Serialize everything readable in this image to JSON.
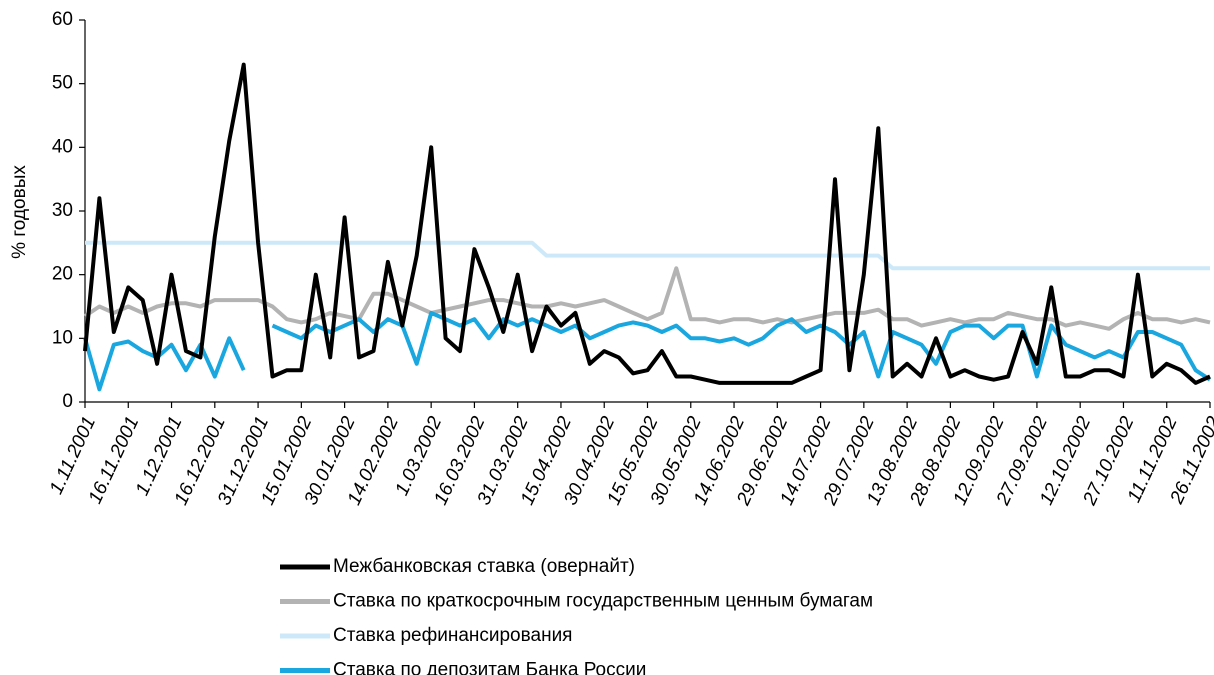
{
  "chart_data": {
    "type": "line",
    "y_label": "% годовых",
    "categories": [
      "1.11.2001",
      null,
      null,
      "16.11.2001",
      null,
      null,
      "1.12.2001",
      null,
      null,
      "16.12.2001",
      null,
      null,
      "31.12.2001",
      null,
      null,
      "15.01.2002",
      null,
      null,
      "30.01.2002",
      null,
      null,
      "14.02.2002",
      null,
      null,
      "1.03.2002",
      null,
      null,
      "16.03.2002",
      null,
      null,
      "31.03.2002",
      null,
      null,
      "15.04.2002",
      null,
      null,
      "30.04.2002",
      null,
      null,
      "15.05.2002",
      null,
      null,
      "30.05.2002",
      null,
      null,
      "14.06.2002",
      null,
      null,
      "29.06.2002",
      null,
      null,
      "14.07.2002",
      null,
      null,
      "29.07.2002",
      null,
      null,
      "13.08.2002",
      null,
      null,
      "28.08.2002",
      null,
      null,
      "12.09.2002",
      null,
      null,
      "27.09.2002",
      null,
      null,
      "12.10.2002",
      null,
      null,
      "27.10.2002",
      null,
      null,
      "11.11.2002",
      null,
      null,
      "26.11.2002"
    ],
    "series": [
      {
        "name": "Ставка рефинансирования",
        "color": "#cde9f9",
        "values": [
          25,
          25,
          25,
          25,
          25,
          25,
          25,
          25,
          25,
          25,
          25,
          25,
          25,
          25,
          25,
          25,
          25,
          25,
          25,
          25,
          25,
          25,
          25,
          25,
          25,
          25,
          25,
          25,
          25,
          25,
          25,
          25,
          23,
          23,
          23,
          23,
          23,
          23,
          23,
          23,
          23,
          23,
          23,
          23,
          23,
          23,
          23,
          23,
          23,
          23,
          23,
          23,
          23,
          23,
          23,
          23,
          21,
          21,
          21,
          21,
          21,
          21,
          21,
          21,
          21,
          21,
          21,
          21,
          21,
          21,
          21,
          21,
          21,
          21,
          21,
          21,
          21,
          21,
          21
        ]
      },
      {
        "name": "Ставка по краткосрочным государственным ценным бумагам",
        "color": "#b3b3b3",
        "values": [
          13.5,
          15,
          14,
          15,
          14,
          15,
          15.5,
          15.5,
          15,
          16,
          16,
          16,
          16,
          15,
          13,
          12.5,
          13,
          14,
          13.5,
          13,
          17,
          17,
          16,
          15,
          14,
          14.5,
          15,
          15.5,
          16,
          16,
          15.5,
          15,
          15,
          15.5,
          15,
          15.5,
          16,
          15,
          14,
          13,
          14,
          21,
          13,
          13,
          12.5,
          13,
          13,
          12.5,
          13,
          12.5,
          13,
          13.5,
          14,
          14,
          14,
          14.5,
          13,
          13,
          12,
          12.5,
          13,
          12.5,
          13,
          13,
          14,
          13.5,
          13,
          13,
          12,
          12.5,
          12,
          11.5,
          13,
          14,
          13,
          13,
          12.5,
          13,
          12.5
        ]
      },
      {
        "name": "Ставка по депозитам Банка России",
        "color": "#1aa7e0",
        "values": [
          10,
          2,
          9,
          9.5,
          8,
          7,
          9,
          5,
          9,
          4,
          10,
          5,
          null,
          12,
          11,
          10,
          12,
          11,
          12,
          13,
          11,
          13,
          12,
          6,
          14,
          13,
          12,
          13,
          10,
          13,
          12,
          13,
          12,
          11,
          12,
          10,
          11,
          12,
          12.5,
          12,
          11,
          12,
          10,
          10,
          9.5,
          10,
          9,
          10,
          12,
          13,
          11,
          12,
          11,
          9,
          11,
          4,
          11,
          10,
          9,
          6,
          11,
          12,
          12,
          10,
          12,
          12,
          4,
          12,
          9,
          8,
          7,
          8,
          7,
          11,
          11,
          10,
          9,
          5,
          3.5
        ]
      },
      {
        "name": "Межбанковская ставка (овернайт)",
        "color": "#000000",
        "values": [
          8,
          32,
          11,
          18,
          16,
          6,
          20,
          8,
          7,
          26,
          41,
          53,
          25,
          4,
          5,
          5,
          20,
          7,
          29,
          7,
          8,
          22,
          12,
          23,
          40,
          10,
          8,
          24,
          18,
          11,
          20,
          8,
          15,
          12,
          14,
          6,
          8,
          7,
          4.5,
          5,
          8,
          4,
          4,
          3.5,
          3,
          3,
          3,
          3,
          3,
          3,
          4,
          5,
          35,
          5,
          20,
          43,
          4,
          6,
          4,
          10,
          4,
          5,
          4,
          3.5,
          4,
          11,
          6,
          18,
          4,
          4,
          5,
          5,
          4,
          20,
          4,
          6,
          5,
          3,
          4
        ]
      }
    ],
    "legend_order": [
      3,
      1,
      0,
      2
    ],
    "ylim": [
      0,
      60
    ],
    "yticks": [
      0,
      10,
      20,
      30,
      40,
      50,
      60
    ],
    "grid": false
  }
}
